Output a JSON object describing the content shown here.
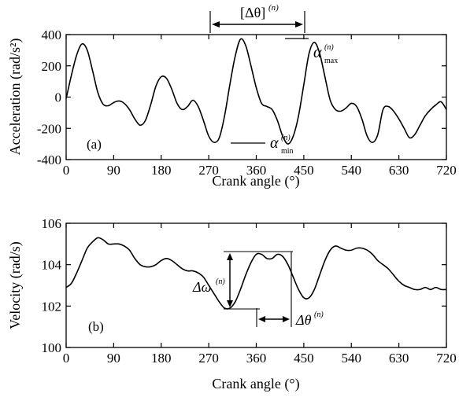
{
  "chart_data": [
    {
      "type": "line",
      "panel_label": "(a)",
      "xlabel": "Crank angle (°)",
      "ylabel": "Acceleration (rad/s²)",
      "xlim": [
        0,
        720
      ],
      "ylim": [
        -400,
        400
      ],
      "xticks": [
        "0",
        "90",
        "180",
        "270",
        "360",
        "450",
        "540",
        "630",
        "720"
      ],
      "yticks": [
        "400",
        "200",
        "0",
        "-200",
        "-400"
      ],
      "grid": false,
      "annotations": {
        "delta_theta": "[Δθ]",
        "delta_theta_sup": "(n)",
        "alpha_max": "α",
        "alpha_max_sup": "(n)",
        "alpha_max_sub": "max",
        "alpha_min": "α",
        "alpha_min_sup": "(n)",
        "alpha_min_sub": "min"
      },
      "series": [
        {
          "x": [
            0,
            10,
            20,
            30,
            40,
            50,
            60,
            70,
            80,
            90,
            100,
            110,
            120,
            130,
            140,
            150,
            160,
            170,
            180,
            190,
            200,
            210,
            220,
            230,
            240,
            250,
            260,
            270,
            280,
            290,
            300,
            310,
            320,
            330,
            340,
            350,
            360,
            370,
            380,
            390,
            400,
            410,
            420,
            430,
            440,
            450,
            460,
            470,
            480,
            490,
            500,
            510,
            520,
            530,
            540,
            550,
            560,
            570,
            580,
            590,
            600,
            610,
            620,
            630,
            640,
            650,
            660,
            670,
            680,
            690,
            700,
            710,
            720
          ],
          "y": [
            -10,
            140,
            270,
            340,
            300,
            170,
            30,
            -45,
            -55,
            -35,
            -25,
            -40,
            -80,
            -140,
            -180,
            -150,
            -50,
            70,
            130,
            120,
            50,
            -40,
            -80,
            -60,
            -20,
            -60,
            -150,
            -250,
            -290,
            -260,
            -120,
            80,
            260,
            370,
            330,
            200,
            60,
            -40,
            -60,
            -80,
            -150,
            -250,
            -300,
            -250,
            -120,
            80,
            280,
            350,
            280,
            130,
            -20,
            -80,
            -90,
            -70,
            -40,
            -60,
            -140,
            -250,
            -290,
            -240,
            -80,
            -60,
            -90,
            -140,
            -200,
            -260,
            -240,
            -180,
            -120,
            -80,
            -50,
            -30,
            -80
          ]
        }
      ]
    },
    {
      "type": "line",
      "panel_label": "(b)",
      "xlabel": "Crank angle (°)",
      "ylabel": "Velocity (rad/s)",
      "xlim": [
        0,
        720
      ],
      "ylim": [
        100,
        106
      ],
      "xticks": [
        "0",
        "90",
        "180",
        "270",
        "360",
        "450",
        "540",
        "630",
        "720"
      ],
      "yticks": [
        "106",
        "104",
        "102",
        "100"
      ],
      "grid": false,
      "annotations": {
        "delta_omega": "Δω",
        "delta_omega_sup": "(n)",
        "delta_theta": "Δθ",
        "delta_theta_sup": "(n)"
      },
      "series": [
        {
          "x": [
            0,
            10,
            20,
            30,
            40,
            50,
            60,
            70,
            80,
            90,
            100,
            110,
            120,
            130,
            140,
            150,
            160,
            170,
            180,
            190,
            200,
            210,
            220,
            230,
            240,
            250,
            260,
            270,
            280,
            290,
            300,
            310,
            320,
            330,
            340,
            350,
            360,
            370,
            380,
            390,
            400,
            410,
            420,
            430,
            440,
            450,
            460,
            470,
            480,
            490,
            500,
            510,
            520,
            530,
            540,
            550,
            560,
            570,
            580,
            590,
            600,
            610,
            620,
            630,
            640,
            650,
            660,
            670,
            680,
            690,
            700,
            710,
            720
          ],
          "y": [
            102.9,
            103.1,
            103.6,
            104.2,
            104.8,
            105.1,
            105.3,
            105.2,
            105.0,
            105.0,
            105.0,
            104.9,
            104.7,
            104.3,
            104.0,
            103.9,
            103.9,
            104.0,
            104.2,
            104.3,
            104.2,
            104.0,
            103.8,
            103.7,
            103.7,
            103.6,
            103.4,
            103.0,
            102.6,
            102.2,
            101.9,
            101.9,
            102.2,
            102.8,
            103.5,
            104.1,
            104.5,
            104.5,
            104.3,
            104.3,
            104.5,
            104.4,
            104.0,
            103.4,
            102.8,
            102.4,
            102.4,
            102.8,
            103.5,
            104.2,
            104.7,
            104.9,
            104.8,
            104.7,
            104.7,
            104.8,
            104.8,
            104.7,
            104.5,
            104.2,
            104.0,
            103.8,
            103.5,
            103.2,
            103.0,
            102.9,
            102.8,
            102.8,
            102.9,
            102.8,
            102.9,
            102.8,
            102.8
          ]
        }
      ]
    }
  ]
}
